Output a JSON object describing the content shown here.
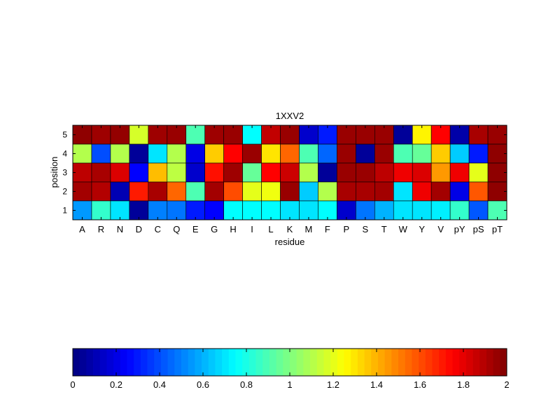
{
  "chart_data": {
    "type": "heatmap",
    "title": "1XXV2",
    "xlabel": "residue",
    "ylabel": "position",
    "x_categories": [
      "A",
      "R",
      "N",
      "D",
      "C",
      "Q",
      "E",
      "G",
      "H",
      "I",
      "L",
      "K",
      "M",
      "F",
      "P",
      "S",
      "T",
      "W",
      "Y",
      "V",
      "pY",
      "pS",
      "pT"
    ],
    "y_categories": [
      "1",
      "2",
      "3",
      "4",
      "5"
    ],
    "rows": [
      {
        "position": "5",
        "values": [
          1.97,
          1.94,
          1.96,
          1.17,
          1.94,
          1.95,
          0.9,
          1.94,
          1.95,
          0.75,
          1.87,
          1.95,
          0.15,
          0.3,
          1.95,
          1.95,
          1.95,
          0.05,
          1.27,
          1.75,
          0.08,
          1.92,
          1.95
        ]
      },
      {
        "position": "4",
        "values": [
          1.1,
          0.4,
          1.1,
          0.05,
          0.7,
          1.1,
          0.2,
          1.35,
          1.75,
          1.95,
          1.3,
          1.55,
          0.9,
          0.45,
          1.95,
          0.05,
          1.95,
          0.9,
          0.95,
          1.35,
          0.65,
          0.3,
          1.97
        ]
      },
      {
        "position": "3",
        "values": [
          1.88,
          1.92,
          1.82,
          0.25,
          1.38,
          1.12,
          0.15,
          1.72,
          1.94,
          0.95,
          1.75,
          1.85,
          1.1,
          0.05,
          1.95,
          1.95,
          1.88,
          1.78,
          1.82,
          1.45,
          1.78,
          1.2,
          1.97
        ]
      },
      {
        "position": "2",
        "values": [
          1.93,
          1.9,
          0.1,
          1.7,
          1.92,
          1.55,
          0.9,
          1.93,
          1.6,
          1.2,
          1.22,
          1.95,
          0.65,
          1.1,
          1.92,
          1.92,
          1.93,
          0.7,
          1.78,
          1.93,
          0.2,
          1.58,
          1.97
        ]
      },
      {
        "position": "1",
        "values": [
          0.55,
          0.85,
          0.7,
          0.05,
          0.5,
          0.48,
          0.3,
          0.25,
          0.75,
          0.75,
          0.75,
          0.7,
          0.7,
          0.75,
          0.15,
          0.48,
          0.6,
          0.7,
          0.7,
          0.72,
          0.85,
          0.42,
          0.9
        ]
      }
    ],
    "colorbar": {
      "colormap": "jet",
      "range": [
        0,
        2
      ],
      "ticks": [
        "0",
        "0.2",
        "0.4",
        "0.6",
        "0.8",
        "1",
        "1.2",
        "1.4",
        "1.6",
        "1.8",
        "2"
      ]
    }
  }
}
